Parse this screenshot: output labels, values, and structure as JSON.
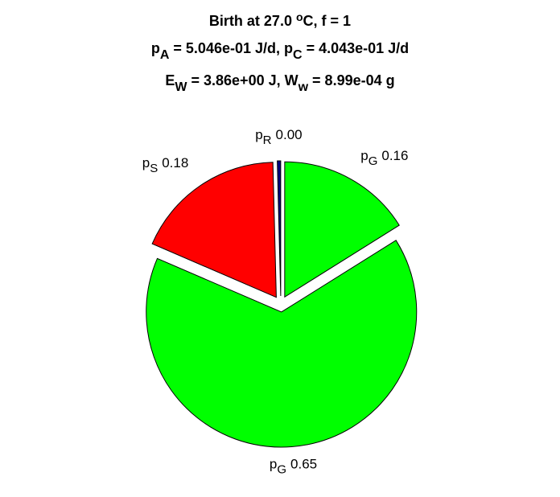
{
  "chart_data": {
    "type": "pie",
    "title_lines": [
      [
        {
          "text": "Birth at 27.0 "
        },
        {
          "text": "o",
          "shift": "super"
        },
        {
          "text": "C, f = 1"
        }
      ],
      [
        {
          "text": "p"
        },
        {
          "text": "A",
          "shift": "sub"
        },
        {
          "text": " = 5.046e-01 J/d, p"
        },
        {
          "text": "C",
          "shift": "sub"
        },
        {
          "text": " = 4.043e-01 J/d"
        }
      ],
      [
        {
          "text": "E"
        },
        {
          "text": "W",
          "shift": "sub"
        },
        {
          "text": " = 3.86e+00 J, W"
        },
        {
          "text": "w",
          "shift": "sub"
        },
        {
          "text": " = 8.99e-04 g"
        }
      ]
    ],
    "categories": [
      {
        "text": "p",
        "sub": "G"
      },
      {
        "text": "p",
        "sub": "G"
      },
      {
        "text": "p",
        "sub": "S"
      },
      {
        "text": "p",
        "sub": "R"
      }
    ],
    "values": [
      0.16,
      0.65,
      0.18,
      0.004
    ],
    "value_labels": [
      "0.16",
      "0.65",
      "0.18",
      "0.00"
    ],
    "colors": [
      "#00ff00",
      "#00ff00",
      "#ff0000",
      "#000080"
    ],
    "direction": "clockwise",
    "explode": true
  }
}
